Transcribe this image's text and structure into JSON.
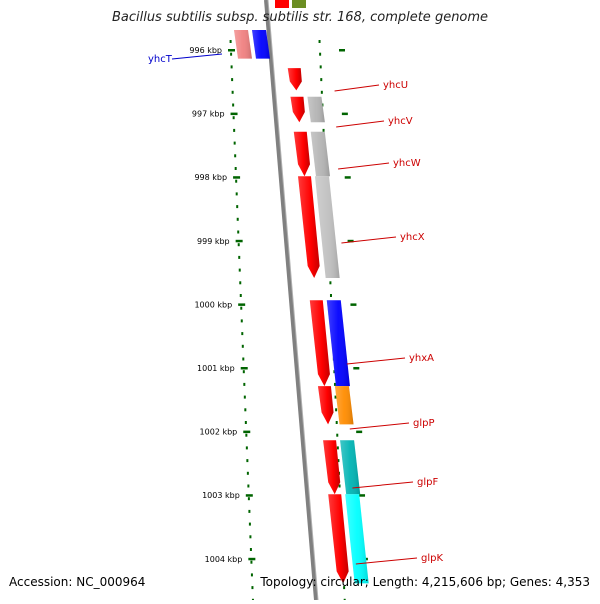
{
  "title": "Bacillus subtilis subsp. subtilis str. 168, complete genome",
  "accession_label": "Accession: NC_000964",
  "stats_label": "Topology: circular; Length: 4,215,606 bp; Genes: 4,353",
  "colors": {
    "backbone": "#808080",
    "forward_strand": "#ff0000",
    "tick": "#006400",
    "label_forward": "#cc0000",
    "label_reverse": "#0000cc"
  },
  "ruler_unit": "kbp",
  "ruler_ticks": [
    {
      "label": "996 kbp",
      "value": 996
    },
    {
      "label": "997 kbp",
      "value": 997
    },
    {
      "label": "998 kbp",
      "value": 998
    },
    {
      "label": "999 kbp",
      "value": 999
    },
    {
      "label": "1000 kbp",
      "value": 1000
    },
    {
      "label": "1001 kbp",
      "value": 1001
    },
    {
      "label": "1002 kbp",
      "value": 1002
    },
    {
      "label": "1003 kbp",
      "value": 1003
    },
    {
      "label": "1004 kbp",
      "value": 1004
    }
  ],
  "genes": [
    {
      "name": "yhcT",
      "strand": "reverse",
      "start": 996.0,
      "end": 996.45,
      "cog_color": "#0000ff"
    },
    {
      "name": "yhcU",
      "strand": "forward",
      "start": 996.6,
      "end": 996.95,
      "cog_color": null
    },
    {
      "name": "yhcV",
      "strand": "forward",
      "start": 997.05,
      "end": 997.45,
      "cog_color": "#b4b4b4"
    },
    {
      "name": "yhcW",
      "strand": "forward",
      "start": 997.6,
      "end": 998.3,
      "cog_color": "#b4b4b4"
    },
    {
      "name": "yhcX",
      "strand": "forward",
      "start": 998.3,
      "end": 999.9,
      "cog_color": "#c0c0c0"
    },
    {
      "name": "yhxA",
      "strand": "forward",
      "start": 1000.25,
      "end": 1001.6,
      "cog_color": "#0000ff"
    },
    {
      "name": "glpP",
      "strand": "forward",
      "start": 1001.6,
      "end": 1002.2,
      "cog_color": "#ff8c00"
    },
    {
      "name": "glpF",
      "strand": "forward",
      "start": 1002.45,
      "end": 1003.3,
      "cog_color": "#00b4b4"
    },
    {
      "name": "glpK",
      "strand": "forward",
      "start": 1003.3,
      "end": 1004.7,
      "cog_color": "#00ffff"
    }
  ],
  "partial_top_colors": [
    "#ff0000",
    "#6b8e23"
  ]
}
